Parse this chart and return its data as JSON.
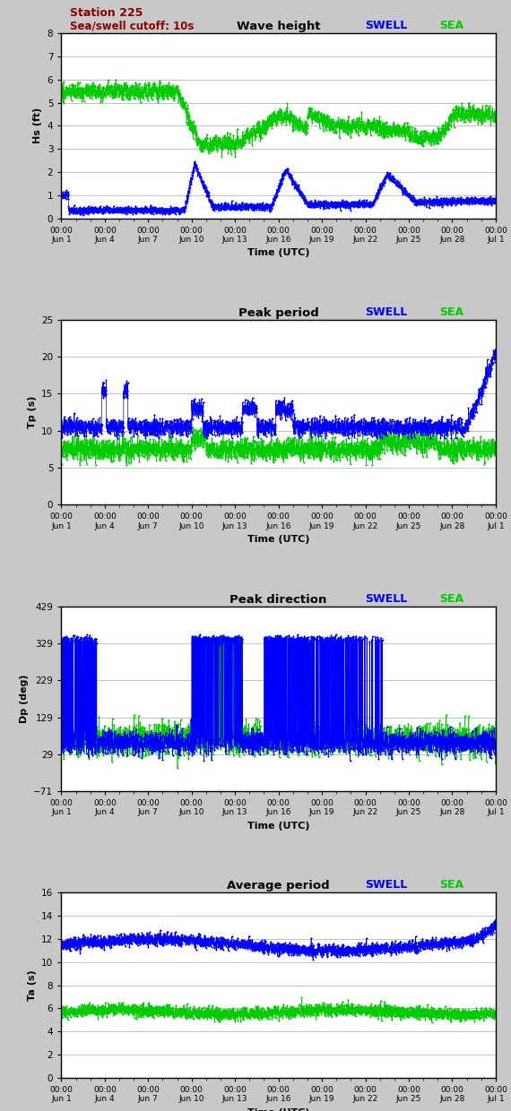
{
  "station_label": "Station 225",
  "cutoff_label": "Sea/swell cutoff: 10s",
  "swell_color": "#0000FF",
  "sea_color": "#00CC00",
  "bg_color": "#C8C8C8",
  "plot_bg": "#FFFFFF",
  "x_tick_positions": [
    0,
    3,
    6,
    9,
    12,
    15,
    18,
    21,
    24,
    27,
    30
  ],
  "x_tick_labels": [
    "00:00\nJun 1",
    "00:00\nJun 4",
    "00:00\nJun 7",
    "00:00\nJun 10",
    "00:00\nJun 13",
    "00:00\nJun 16",
    "00:00\nJun 19",
    "00:00\nJun 22",
    "00:00\nJun 25",
    "00:00\nJun 28",
    "00:00\nJul 1"
  ],
  "panels": [
    {
      "title": "Wave height",
      "ylabel": "Hs (ft)",
      "ylim": [
        0.0,
        8.0
      ],
      "yticks": [
        0.0,
        1.0,
        2.0,
        3.0,
        4.0,
        5.0,
        6.0,
        7.0,
        8.0
      ],
      "show_station": true
    },
    {
      "title": "Peak period",
      "ylabel": "Tp (s)",
      "ylim": [
        0,
        25
      ],
      "yticks": [
        0,
        5,
        10,
        15,
        20,
        25
      ],
      "show_station": false
    },
    {
      "title": "Peak direction",
      "ylabel": "Dp (deg)",
      "ylim": [
        -71,
        429
      ],
      "yticks": [
        -71,
        29,
        129,
        229,
        329,
        429
      ],
      "show_station": false
    },
    {
      "title": "Average period",
      "ylabel": "Ta (s)",
      "ylim": [
        0,
        16
      ],
      "yticks": [
        0,
        2,
        4,
        6,
        8,
        10,
        12,
        14,
        16
      ],
      "show_station": false
    }
  ]
}
